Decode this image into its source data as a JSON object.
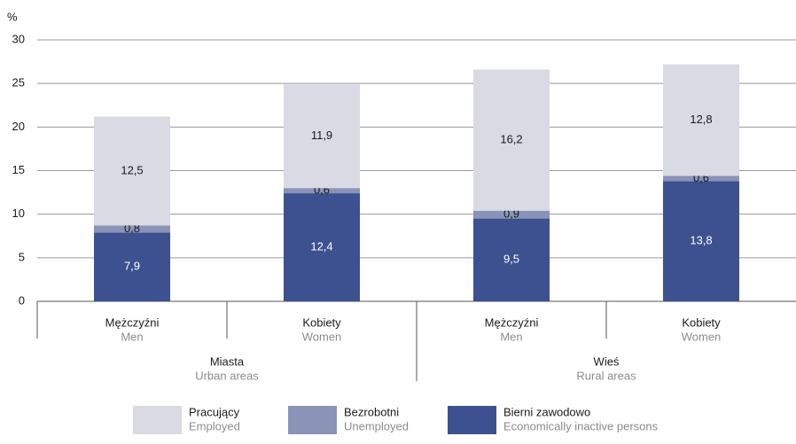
{
  "chart_data": {
    "type": "stacked_bar",
    "y_unit": "%",
    "categories": [
      "Mężczyźni",
      "Kobiety",
      "Mężczyźni",
      "Kobiety"
    ],
    "categories_en": [
      "Men",
      "Women",
      "Men",
      "Women"
    ],
    "groups": [
      {
        "name": "Miasta",
        "name_en": "Urban areas"
      },
      {
        "name": "Wieś",
        "name_en": "Rural areas"
      }
    ],
    "series": [
      {
        "name": "Bierni zawodowo",
        "name_en": "Economically inactive persons",
        "color": "#3d5190",
        "label_color": "#ffffff",
        "values": [
          7.9,
          12.4,
          9.5,
          13.8
        ],
        "value_labels": [
          "7,9",
          "12,4",
          "9,5",
          "13,8"
        ]
      },
      {
        "name": "Bezrobotni",
        "name_en": "Unemployed",
        "color": "#8a93b8",
        "label_color": "#1a1a1a",
        "values": [
          0.8,
          0.6,
          0.9,
          0.6
        ],
        "value_labels": [
          "0,8",
          "0,6",
          "0,9",
          "0,6"
        ]
      },
      {
        "name": "Pracujący",
        "name_en": "Employed",
        "color": "#d9dae3",
        "label_color": "#1a1a1a",
        "values": [
          12.5,
          11.9,
          16.2,
          12.8
        ],
        "value_labels": [
          "12,5",
          "11,9",
          "16,2",
          "12,8"
        ]
      }
    ],
    "ylim": [
      0,
      30
    ],
    "yticks": [
      0,
      5,
      10,
      15,
      20,
      25,
      30
    ],
    "grid": true
  }
}
